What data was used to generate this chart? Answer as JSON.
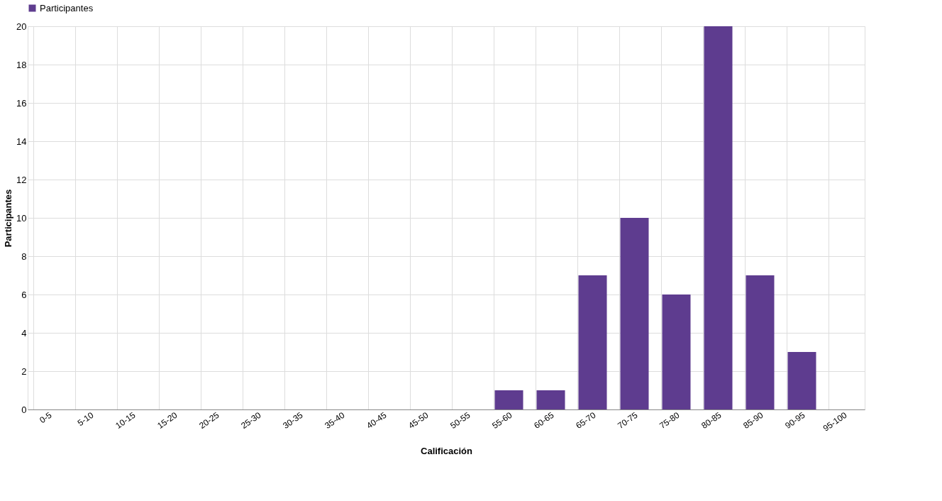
{
  "chart_data": {
    "type": "bar",
    "xlabel": "Calificación",
    "ylabel": "Participantes",
    "categories": [
      "0-5",
      "5-10",
      "10-15",
      "15-20",
      "20-25",
      "25-30",
      "30-35",
      "35-40",
      "40-45",
      "45-50",
      "50-55",
      "55-60",
      "60-65",
      "65-70",
      "70-75",
      "75-80",
      "80-85",
      "85-90",
      "90-95",
      "95-100"
    ],
    "series": [
      {
        "name": "Participantes",
        "color": "#5e3c8f",
        "values": [
          0,
          0,
          0,
          0,
          0,
          0,
          0,
          0,
          0,
          0,
          0,
          1,
          1,
          7,
          10,
          6,
          20,
          7,
          3,
          0
        ]
      }
    ],
    "ylim": [
      0,
      20
    ],
    "yticks": [
      0,
      2,
      4,
      6,
      8,
      10,
      12,
      14,
      16,
      18,
      20
    ],
    "grid": true,
    "legend": "top"
  }
}
